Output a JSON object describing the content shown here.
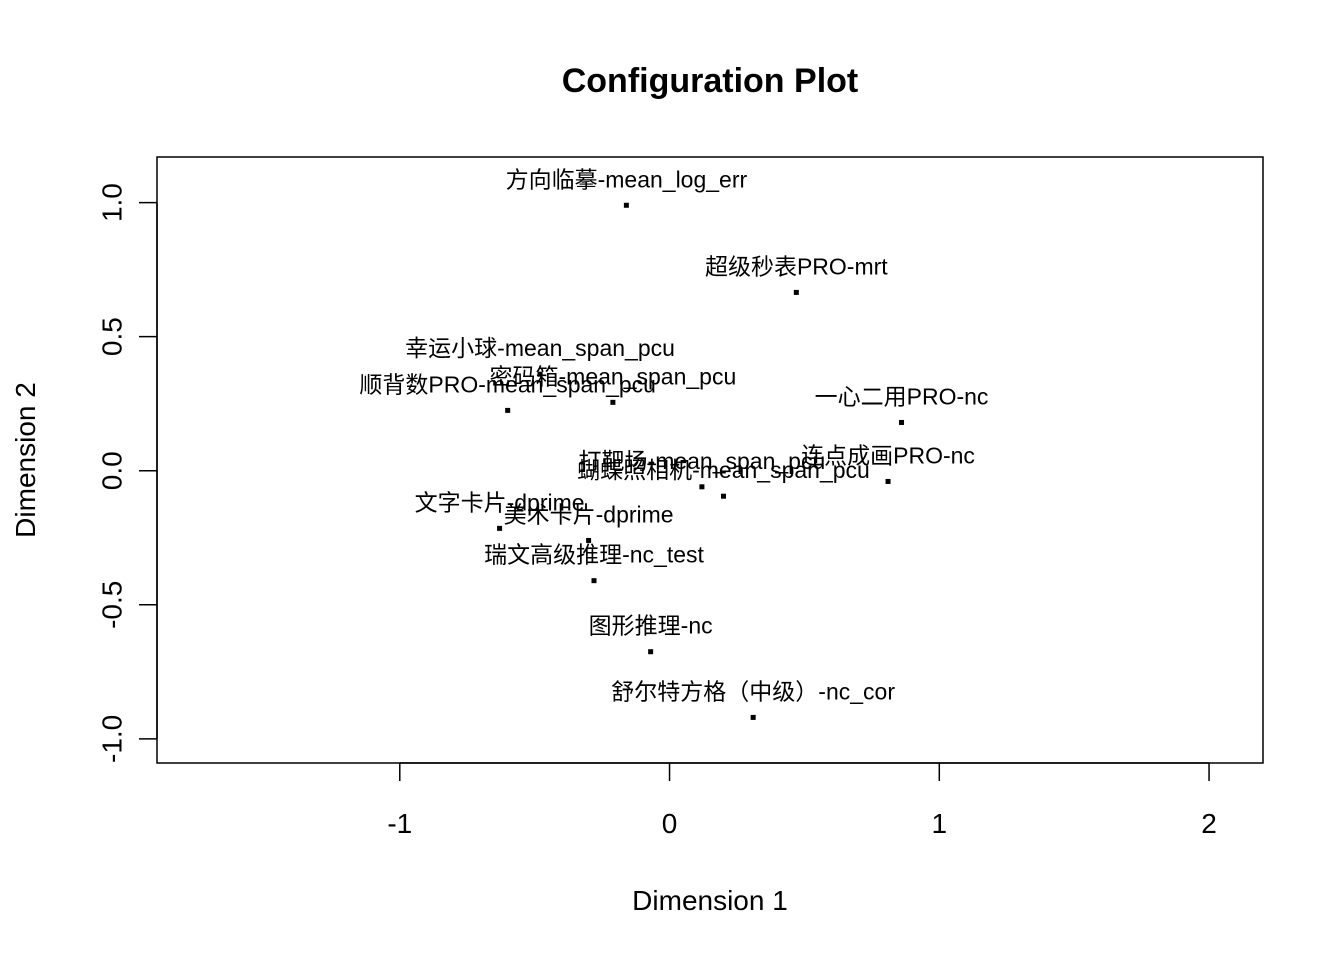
{
  "chart_data": {
    "type": "scatter",
    "title": "Configuration Plot",
    "xlabel": "Dimension 1",
    "ylabel": "Dimension 2",
    "xlim": [
      -1.9,
      2.2
    ],
    "ylim": [
      -1.09,
      1.17
    ],
    "xticks": [
      {
        "value": -1,
        "label": "-1"
      },
      {
        "value": 0,
        "label": "0"
      },
      {
        "value": 1,
        "label": "1"
      },
      {
        "value": 2,
        "label": "2"
      }
    ],
    "yticks": [
      {
        "value": -1.0,
        "label": "-1.0"
      },
      {
        "value": -0.5,
        "label": "-0.5"
      },
      {
        "value": 0.0,
        "label": "0.0"
      },
      {
        "value": 0.5,
        "label": "0.5"
      },
      {
        "value": 1.0,
        "label": "1.0"
      }
    ],
    "grid": false,
    "legend": "none",
    "points": [
      {
        "label": "方向临摹-mean_log_err",
        "x": -0.16,
        "y": 0.99
      },
      {
        "label": "超级秒表PRO-mrt",
        "x": 0.47,
        "y": 0.665
      },
      {
        "label": "幸运小球-mean_span_pcu",
        "x": -0.48,
        "y": 0.36
      },
      {
        "label": "密码箱-mean_span_pcu",
        "x": -0.21,
        "y": 0.255
      },
      {
        "label": "顺背数PRO-mean_span_pcu",
        "x": -0.6,
        "y": 0.225
      },
      {
        "label": "一心二用PRO-nc",
        "x": 0.86,
        "y": 0.18
      },
      {
        "label": "连点成画PRO-nc",
        "x": 0.81,
        "y": -0.04
      },
      {
        "label": "打靶场-mean_span_pcu",
        "x": 0.12,
        "y": -0.06
      },
      {
        "label": "蝴蝶照相机-mean_span_pcu",
        "x": 0.2,
        "y": -0.095
      },
      {
        "label": "文字卡片-dprime",
        "x": -0.63,
        "y": -0.215
      },
      {
        "label": "美术卡片-dprime",
        "x": -0.3,
        "y": -0.26
      },
      {
        "label": "瑞文高级推理-nc_test",
        "x": -0.28,
        "y": -0.41
      },
      {
        "label": "图形推理-nc",
        "x": -0.07,
        "y": -0.675
      },
      {
        "label": "舒尔特方格（中级）-nc_cor",
        "x": 0.31,
        "y": -0.92
      }
    ]
  }
}
